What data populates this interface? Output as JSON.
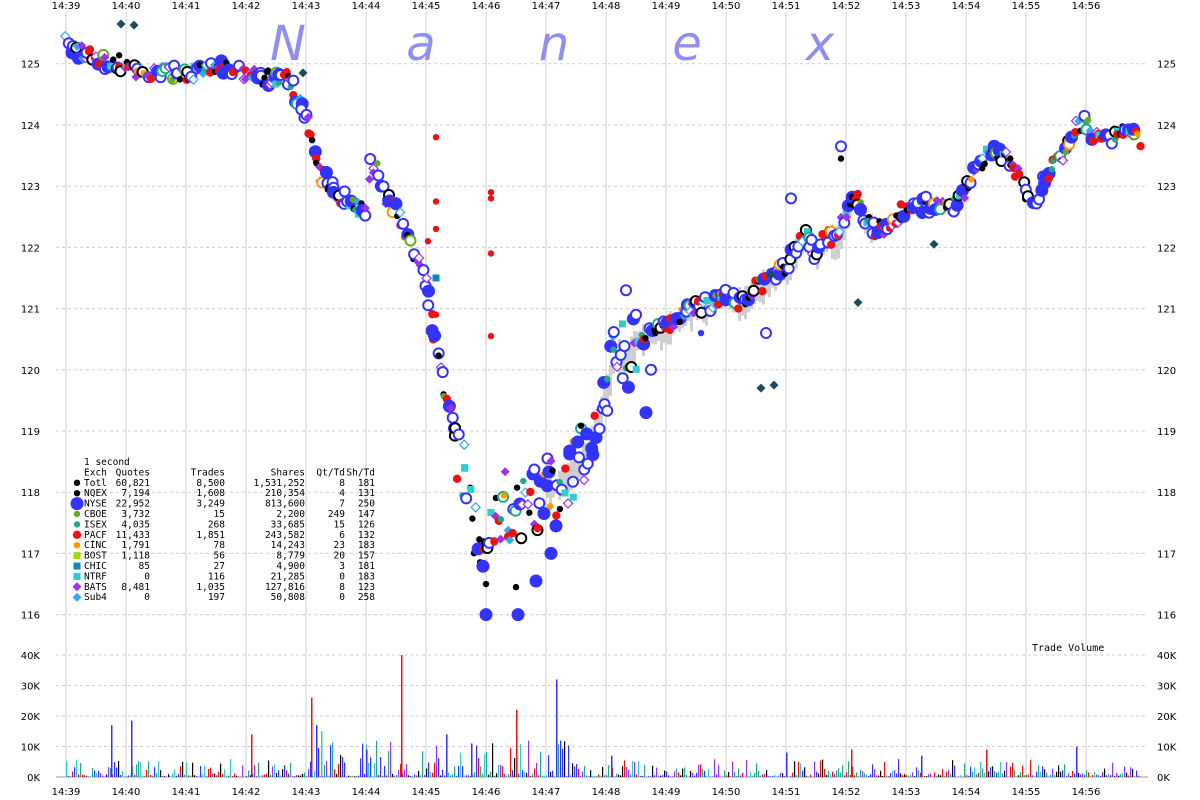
{
  "watermark": [
    "N",
    "a",
    "n",
    "e",
    "x"
  ],
  "legend": {
    "interval": "1 second",
    "headers": [
      "Exch",
      "Quotes",
      "Trades",
      "Shares",
      "Qt/Td",
      "Sh/Td"
    ],
    "rows": [
      {
        "exch": "Totl",
        "quotes": "60,821",
        "trades": "8,500",
        "shares": "1,531,252",
        "qt_td": "8",
        "sh_td": "181",
        "color": "#000000",
        "marker": "dot"
      },
      {
        "exch": "NQEX",
        "quotes": "7,194",
        "trades": "1,608",
        "shares": "210,354",
        "qt_td": "4",
        "sh_td": "131",
        "color": "#000000",
        "marker": "dot"
      },
      {
        "exch": "NYSE",
        "quotes": "22,952",
        "trades": "3,249",
        "shares": "813,600",
        "qt_td": "7",
        "sh_td": "250",
        "color": "#3333ff",
        "marker": "bigdot"
      },
      {
        "exch": "CBOE",
        "quotes": "3,732",
        "trades": "15",
        "shares": "2,200",
        "qt_td": "249",
        "sh_td": "147",
        "color": "#66aa22",
        "marker": "dot"
      },
      {
        "exch": "ISEX",
        "quotes": "4,035",
        "trades": "268",
        "shares": "33,685",
        "qt_td": "15",
        "sh_td": "126",
        "color": "#22aa88",
        "marker": "dot"
      },
      {
        "exch": "PACF",
        "quotes": "11,433",
        "trades": "1,851",
        "shares": "243,582",
        "qt_td": "6",
        "sh_td": "132",
        "color": "#ee1111",
        "marker": "meddot"
      },
      {
        "exch": "CINC",
        "quotes": "1,791",
        "trades": "78",
        "shares": "14,243",
        "qt_td": "23",
        "sh_td": "183",
        "color": "#ff9900",
        "marker": "dot"
      },
      {
        "exch": "BOST",
        "quotes": "1,118",
        "trades": "56",
        "shares": "8,779",
        "qt_td": "20",
        "sh_td": "157",
        "color": "#99dd00",
        "marker": "square"
      },
      {
        "exch": "CHIC",
        "quotes": "85",
        "trades": "27",
        "shares": "4,900",
        "qt_td": "3",
        "sh_td": "181",
        "color": "#1188bb",
        "marker": "square"
      },
      {
        "exch": "NTRF",
        "quotes": "0",
        "trades": "116",
        "shares": "21,285",
        "qt_td": "0",
        "sh_td": "183",
        "color": "#33cccc",
        "marker": "square"
      },
      {
        "exch": "BATS",
        "quotes": "8,481",
        "trades": "1,035",
        "shares": "127,816",
        "qt_td": "8",
        "sh_td": "123",
        "color": "#9933ee",
        "marker": "diamond"
      },
      {
        "exch": "Sub4",
        "quotes": "0",
        "trades": "197",
        "shares": "50,808",
        "qt_td": "0",
        "sh_td": "258",
        "color": "#33aaee",
        "marker": "diamond"
      }
    ]
  },
  "volume_label": "Trade Volume",
  "chart_data": [
    {
      "type": "scatter",
      "title": "",
      "x_ticks": [
        "14:39",
        "14:40",
        "14:41",
        "14:42",
        "14:43",
        "14:44",
        "14:45",
        "14:46",
        "14:47",
        "14:48",
        "14:49",
        "14:50",
        "14:51",
        "14:52",
        "14:53",
        "14:54",
        "14:55",
        "14:56"
      ],
      "x_range": [
        "14:39:00",
        "14:57:15"
      ],
      "y_ticks": [
        116,
        117,
        118,
        119,
        120,
        121,
        122,
        123,
        124,
        125
      ],
      "ylim": [
        115.7,
        125.6
      ],
      "grid": true,
      "price_path": [
        [
          "14:39:00",
          125.4
        ],
        [
          "14:39:10",
          125.2
        ],
        [
          "14:39:30",
          125.05
        ],
        [
          "14:40:00",
          125.0
        ],
        [
          "14:40:10",
          124.8
        ],
        [
          "14:40:30",
          124.85
        ],
        [
          "14:41:00",
          124.85
        ],
        [
          "14:41:30",
          124.95
        ],
        [
          "14:41:45",
          124.9
        ],
        [
          "14:42:00",
          124.8
        ],
        [
          "14:42:30",
          124.75
        ],
        [
          "14:42:45",
          124.75
        ],
        [
          "14:42:50",
          124.4
        ],
        [
          "14:43:00",
          124.2
        ],
        [
          "14:43:05",
          123.8
        ],
        [
          "14:43:10",
          123.3
        ],
        [
          "14:43:20",
          123.1
        ],
        [
          "14:43:30",
          122.9
        ],
        [
          "14:43:45",
          122.75
        ],
        [
          "14:44:00",
          122.6
        ],
        [
          "14:44:05",
          123.5
        ],
        [
          "14:44:10",
          123.3
        ],
        [
          "14:44:15",
          122.95
        ],
        [
          "14:44:30",
          122.6
        ],
        [
          "14:44:45",
          122.0
        ],
        [
          "14:45:00",
          121.4
        ],
        [
          "14:45:10",
          120.4
        ],
        [
          "14:45:20",
          119.5
        ],
        [
          "14:45:30",
          118.9
        ],
        [
          "14:45:40",
          118.0
        ],
        [
          "14:45:50",
          117.4
        ],
        [
          "14:46:00",
          117.1
        ],
        [
          "14:46:10",
          117.6
        ],
        [
          "14:46:20",
          117.9
        ],
        [
          "14:46:30",
          117.6
        ],
        [
          "14:46:40",
          117.8
        ],
        [
          "14:46:50",
          117.9
        ],
        [
          "14:47:00",
          118.0
        ],
        [
          "14:47:15",
          118.2
        ],
        [
          "14:47:30",
          118.4
        ],
        [
          "14:47:45",
          118.9
        ],
        [
          "14:48:00",
          119.7
        ],
        [
          "14:48:10",
          120.3
        ],
        [
          "14:48:20",
          120.2
        ],
        [
          "14:48:30",
          120.5
        ],
        [
          "14:48:45",
          120.6
        ],
        [
          "14:49:00",
          120.7
        ],
        [
          "14:49:15",
          120.9
        ],
        [
          "14:49:30",
          121.0
        ],
        [
          "14:49:45",
          121.1
        ],
        [
          "14:50:00",
          121.25
        ],
        [
          "14:50:15",
          121.1
        ],
        [
          "14:50:30",
          121.35
        ],
        [
          "14:50:45",
          121.5
        ],
        [
          "14:51:00",
          121.7
        ],
        [
          "14:51:10",
          122.0
        ],
        [
          "14:51:20",
          122.2
        ],
        [
          "14:51:30",
          121.9
        ],
        [
          "14:51:40",
          122.2
        ],
        [
          "14:51:50",
          122.1
        ],
        [
          "14:52:00",
          122.6
        ],
        [
          "14:52:10",
          122.8
        ],
        [
          "14:52:20",
          122.4
        ],
        [
          "14:52:30",
          122.3
        ],
        [
          "14:52:40",
          122.3
        ],
        [
          "14:52:50",
          122.5
        ],
        [
          "14:53:00",
          122.65
        ],
        [
          "14:53:20",
          122.7
        ],
        [
          "14:53:40",
          122.65
        ],
        [
          "14:53:50",
          122.7
        ],
        [
          "14:54:00",
          123.0
        ],
        [
          "14:54:10",
          123.2
        ],
        [
          "14:54:20",
          123.5
        ],
        [
          "14:54:30",
          123.6
        ],
        [
          "14:54:40",
          123.5
        ],
        [
          "14:54:50",
          123.3
        ],
        [
          "14:55:00",
          122.9
        ],
        [
          "14:55:10",
          122.8
        ],
        [
          "14:55:20",
          123.1
        ],
        [
          "14:55:30",
          123.4
        ],
        [
          "14:55:40",
          123.6
        ],
        [
          "14:55:50",
          123.95
        ],
        [
          "14:56:00",
          124.05
        ],
        [
          "14:56:15",
          123.7
        ],
        [
          "14:56:30",
          123.8
        ],
        [
          "14:56:45",
          123.95
        ],
        [
          "14:56:55",
          123.75
        ]
      ],
      "outliers": [
        {
          "t": "14:39:55",
          "p": 125.65,
          "color": "#1a4d5c",
          "marker": "diamond"
        },
        {
          "t": "14:40:08",
          "p": 125.63,
          "color": "#1a4d5c",
          "marker": "diamond"
        },
        {
          "t": "14:42:57",
          "p": 124.85,
          "color": "#1a4d5c",
          "marker": "diamond"
        },
        {
          "t": "14:45:10",
          "p": 123.8,
          "color": "#ee1111",
          "marker": "dot"
        },
        {
          "t": "14:45:10",
          "p": 122.75,
          "color": "#ee1111",
          "marker": "dot"
        },
        {
          "t": "14:45:10",
          "p": 122.3,
          "color": "#ee1111",
          "marker": "dot"
        },
        {
          "t": "14:45:02",
          "p": 122.1,
          "color": "#ee1111",
          "marker": "dot"
        },
        {
          "t": "14:45:10",
          "p": 121.5,
          "color": "#1188bb",
          "marker": "square"
        },
        {
          "t": "14:45:10",
          "p": 120.9,
          "color": "#ee1111",
          "marker": "dot"
        },
        {
          "t": "14:46:05",
          "p": 122.9,
          "color": "#ee1111",
          "marker": "dot"
        },
        {
          "t": "14:46:05",
          "p": 122.8,
          "color": "#ee1111",
          "marker": "dot"
        },
        {
          "t": "14:46:05",
          "p": 121.9,
          "color": "#ee1111",
          "marker": "dot"
        },
        {
          "t": "14:46:05",
          "p": 120.55,
          "color": "#ee1111",
          "marker": "dot"
        },
        {
          "t": "14:46:00",
          "p": 116.5,
          "color": "#000000",
          "marker": "dot"
        },
        {
          "t": "14:46:30",
          "p": 116.45,
          "color": "#000000",
          "marker": "dot"
        },
        {
          "t": "14:46:00",
          "p": 116.0,
          "color": "#3333ff",
          "marker": "bigdot"
        },
        {
          "t": "14:46:32",
          "p": 116.0,
          "color": "#3333ff",
          "marker": "bigdot"
        },
        {
          "t": "14:46:50",
          "p": 116.55,
          "color": "#3333ff",
          "marker": "bigdot"
        },
        {
          "t": "14:47:05",
          "p": 117.0,
          "color": "#3333ff",
          "marker": "bigdot"
        },
        {
          "t": "14:47:10",
          "p": 117.45,
          "color": "#3333ff",
          "marker": "bigdot"
        },
        {
          "t": "14:50:40",
          "p": 120.6,
          "color": "#3333ff",
          "marker": "ring"
        },
        {
          "t": "14:50:45",
          "p": 121.55,
          "color": "#1a4d5c",
          "marker": "diamond"
        },
        {
          "t": "14:50:35",
          "p": 119.7,
          "color": "#1a4d5c",
          "marker": "diamond"
        },
        {
          "t": "14:50:48",
          "p": 119.75,
          "color": "#1a4d5c",
          "marker": "diamond"
        },
        {
          "t": "14:52:12",
          "p": 121.1,
          "color": "#1a4d5c",
          "marker": "diamond"
        },
        {
          "t": "14:53:28",
          "p": 122.05,
          "color": "#1a4d5c",
          "marker": "diamond"
        },
        {
          "t": "14:51:55",
          "p": 123.65,
          "color": "#3333ff",
          "marker": "ring"
        },
        {
          "t": "14:51:55",
          "p": 123.45,
          "color": "#000000",
          "marker": "dot"
        },
        {
          "t": "14:51:05",
          "p": 122.8,
          "color": "#3333ff",
          "marker": "ring"
        },
        {
          "t": "14:48:20",
          "p": 121.3,
          "color": "#3333ff",
          "marker": "ring"
        },
        {
          "t": "14:48:30",
          "p": 120.9,
          "color": "#3333ff",
          "marker": "ring"
        },
        {
          "t": "14:48:45",
          "p": 120.0,
          "color": "#3333ff",
          "marker": "ring"
        },
        {
          "t": "14:48:40",
          "p": 119.3,
          "color": "#3333ff",
          "marker": "bigdot"
        },
        {
          "t": "14:49:35",
          "p": 120.6,
          "color": "#3333ff",
          "marker": "dot"
        }
      ]
    },
    {
      "type": "bar",
      "title": "Trade Volume",
      "y_ticks": [
        "0K",
        "10K",
        "20K",
        "30K",
        "40K"
      ],
      "ylim": [
        0,
        40000
      ],
      "spikes": [
        {
          "t": "14:39:45",
          "v": 17000,
          "color": "#3333ff"
        },
        {
          "t": "14:40:05",
          "v": 18500,
          "color": "#3333ff"
        },
        {
          "t": "14:42:05",
          "v": 14000,
          "color": "#ee1111"
        },
        {
          "t": "14:43:05",
          "v": 26000,
          "color": "#ee1111"
        },
        {
          "t": "14:43:10",
          "v": 17000,
          "color": "#3333ff"
        },
        {
          "t": "14:43:15",
          "v": 15000,
          "color": "#33cccc"
        },
        {
          "t": "14:44:00",
          "v": 9000,
          "color": "#3333ff"
        },
        {
          "t": "14:44:35",
          "v": 40000,
          "color": "#ee1111"
        },
        {
          "t": "14:45:20",
          "v": 14000,
          "color": "#3333ff"
        },
        {
          "t": "14:45:45",
          "v": 11000,
          "color": "#3333ff"
        },
        {
          "t": "14:46:30",
          "v": 22000,
          "color": "#ee1111"
        },
        {
          "t": "14:47:10",
          "v": 32000,
          "color": "#3333ff"
        },
        {
          "t": "14:48:05",
          "v": 7000,
          "color": "#3333ff"
        },
        {
          "t": "14:51:00",
          "v": 8000,
          "color": "#3333ff"
        },
        {
          "t": "14:52:05",
          "v": 9000,
          "color": "#ee1111"
        },
        {
          "t": "14:53:15",
          "v": 7000,
          "color": "#3333ff"
        },
        {
          "t": "14:54:20",
          "v": 9000,
          "color": "#ee1111"
        },
        {
          "t": "14:55:50",
          "v": 10000,
          "color": "#3333ff"
        }
      ]
    }
  ]
}
